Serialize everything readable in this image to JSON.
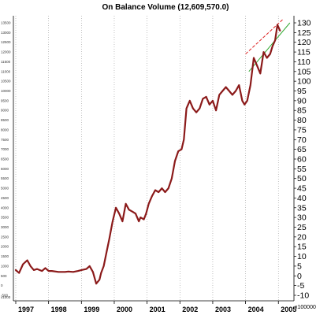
{
  "chart_data": {
    "type": "line",
    "title": "On Balance Volume (12,609,570.0)",
    "right_axis": {
      "ticks": [
        "130",
        "125",
        "120",
        "115",
        "110",
        "105",
        "100",
        "95",
        "90",
        "85",
        "80",
        "75",
        "70",
        "65",
        "60",
        "55",
        "50",
        "45",
        "40",
        "35",
        "30",
        "25",
        "20",
        "15",
        "10",
        "5",
        "0",
        "-5",
        "-10"
      ],
      "unit": "x100000",
      "ylim": [
        -10,
        130
      ]
    },
    "left_axis": {
      "ticks": [
        "13500",
        "13000",
        "12500",
        "12000",
        "11500",
        "11000",
        "10500",
        "10000",
        "9500",
        "9000",
        "8500",
        "8000",
        "7500",
        "7000",
        "6500",
        "6000",
        "5500",
        "5000",
        "4500",
        "4000",
        "3500",
        "3000",
        "2500",
        "2000",
        "1500",
        "1000",
        "500",
        "0",
        "-500"
      ],
      "unit": "x1000"
    },
    "x_axis": {
      "labels": [
        "1997",
        "1998",
        "1999",
        "2000",
        "2001",
        "2002",
        "2003",
        "2004",
        "2005"
      ],
      "xlim": [
        1997.0,
        2005.45
      ]
    },
    "series": [
      {
        "color": "#8b1a1a",
        "x": [
          1997.0,
          1997.1,
          1997.22,
          1997.35,
          1997.45,
          1997.55,
          1997.65,
          1997.8,
          1997.9,
          1998.0,
          1998.1,
          1998.3,
          1998.5,
          1998.6,
          1998.75,
          1998.9,
          1999.0,
          1999.15,
          1999.25,
          1999.35,
          1999.45,
          1999.55,
          1999.6,
          1999.68,
          1999.75,
          1999.85,
          1999.95,
          2000.05,
          2000.15,
          2000.25,
          2000.35,
          2000.45,
          2000.55,
          2000.65,
          2000.75,
          2000.8,
          2000.9,
          2000.97,
          2001.05,
          2001.15,
          2001.25,
          2001.35,
          2001.45,
          2001.55,
          2001.65,
          2001.75,
          2001.85,
          2001.95,
          2002.05,
          2002.12,
          2002.2,
          2002.3,
          2002.4,
          2002.5,
          2002.6,
          2002.7,
          2002.8,
          2002.9,
          2003.0,
          2003.1,
          2003.2,
          2003.3,
          2003.4,
          2003.5,
          2003.6,
          2003.7,
          2003.8,
          2003.9,
          2003.97,
          2004.05,
          2004.15,
          2004.25,
          2004.35,
          2004.45,
          2004.55,
          2004.65,
          2004.75,
          2004.82,
          2004.9,
          2004.97,
          2005.05
        ],
        "y": [
          3,
          1.5,
          6,
          8,
          5,
          3,
          3.5,
          2.5,
          4,
          2.5,
          2.5,
          2,
          2,
          2.2,
          2,
          2.5,
          3,
          3.5,
          5,
          2,
          -4,
          -2,
          1.5,
          5,
          11,
          19,
          28,
          35,
          32,
          28,
          37,
          34,
          33,
          32,
          28,
          30,
          29,
          32,
          37,
          41,
          44,
          43,
          45,
          43,
          45,
          50,
          59,
          64,
          65,
          70,
          86,
          90,
          86,
          84,
          86,
          91,
          92,
          88,
          90,
          85,
          93,
          95,
          97,
          95,
          93,
          95,
          98,
          90,
          88,
          90,
          98,
          112,
          108,
          104,
          115,
          112,
          114,
          118,
          121,
          129,
          126
        ]
      }
    ],
    "trendlines": [
      {
        "color": "#dd2222",
        "dash": true,
        "x": [
          2004.0,
          2005.15
        ],
        "y": [
          114,
          132
        ]
      },
      {
        "color": "#33aa33",
        "dash": false,
        "x": [
          2004.1,
          2005.35
        ],
        "y": [
          105,
          130
        ]
      }
    ],
    "grid": "vertical dotted at year boundaries"
  }
}
